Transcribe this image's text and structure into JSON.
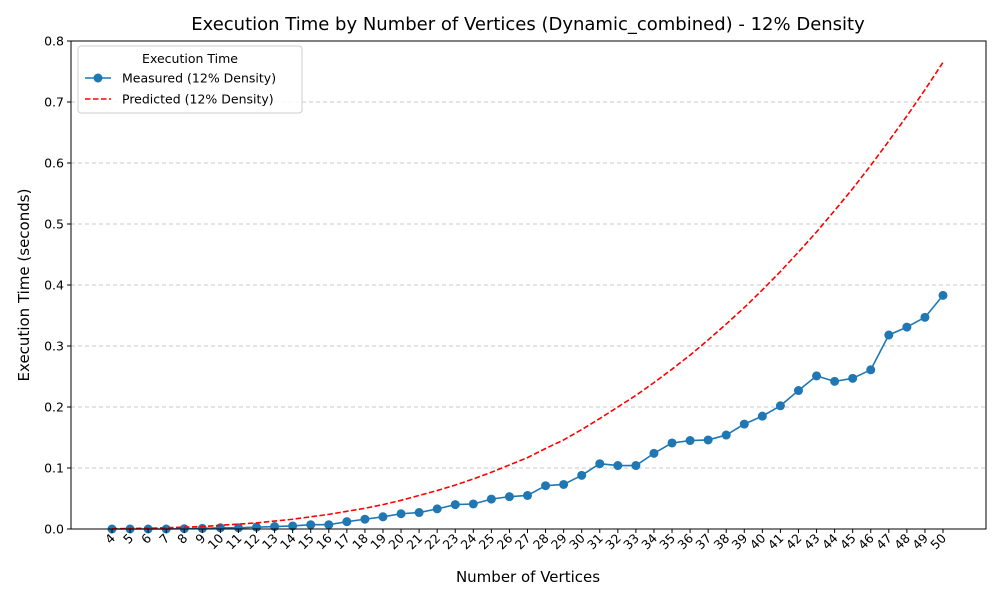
{
  "chart_data": {
    "type": "line",
    "title": "Execution Time by Number of Vertices (Dynamic_combined) - 12% Density",
    "xlabel": "Number of Vertices",
    "ylabel": "Execution Time (seconds)",
    "ylim": [
      0,
      0.8
    ],
    "yticks": [
      "0.0",
      "0.1",
      "0.2",
      "0.3",
      "0.4",
      "0.5",
      "0.6",
      "0.7",
      "0.8"
    ],
    "grid": "horizontal dashed",
    "legend": {
      "title": "Execution Time",
      "placement": "top-left"
    },
    "x": [
      4,
      5,
      6,
      7,
      8,
      9,
      10,
      11,
      12,
      13,
      14,
      15,
      16,
      17,
      18,
      19,
      20,
      21,
      22,
      23,
      24,
      25,
      26,
      27,
      28,
      29,
      30,
      31,
      32,
      33,
      34,
      35,
      36,
      37,
      38,
      39,
      40,
      41,
      42,
      43,
      44,
      45,
      46,
      47,
      48,
      49,
      50
    ],
    "series": [
      {
        "name": "Measured (12% Density)",
        "color": "#1f77b4",
        "style": "solid-markers",
        "values": [
          0.0,
          0.0,
          0.0,
          0.0,
          0.0005,
          0.001,
          0.002,
          0.002,
          0.003,
          0.004,
          0.005,
          0.007,
          0.007,
          0.012,
          0.016,
          0.02,
          0.025,
          0.027,
          0.033,
          0.04,
          0.041,
          0.049,
          0.053,
          0.055,
          0.071,
          0.073,
          0.088,
          0.107,
          0.104,
          0.104,
          0.124,
          0.141,
          0.145,
          0.146,
          0.154,
          0.172,
          0.185,
          0.202,
          0.227,
          0.251,
          0.242,
          0.247,
          0.261,
          0.318,
          0.331,
          0.347,
          0.383
        ]
      },
      {
        "name": "Predicted (12% Density)",
        "color": "#ff0000",
        "style": "dashed",
        "values": [
          0.0004,
          0.0008,
          0.0013,
          0.002,
          0.003,
          0.004,
          0.006,
          0.008,
          0.01,
          0.013,
          0.016,
          0.02,
          0.024,
          0.029,
          0.034,
          0.04,
          0.047,
          0.055,
          0.063,
          0.072,
          0.082,
          0.093,
          0.105,
          0.117,
          0.132,
          0.146,
          0.163,
          0.181,
          0.2,
          0.219,
          0.24,
          0.262,
          0.285,
          0.31,
          0.336,
          0.363,
          0.392,
          0.422,
          0.454,
          0.487,
          0.522,
          0.558,
          0.596,
          0.636,
          0.677,
          0.72,
          0.765
        ]
      }
    ]
  }
}
